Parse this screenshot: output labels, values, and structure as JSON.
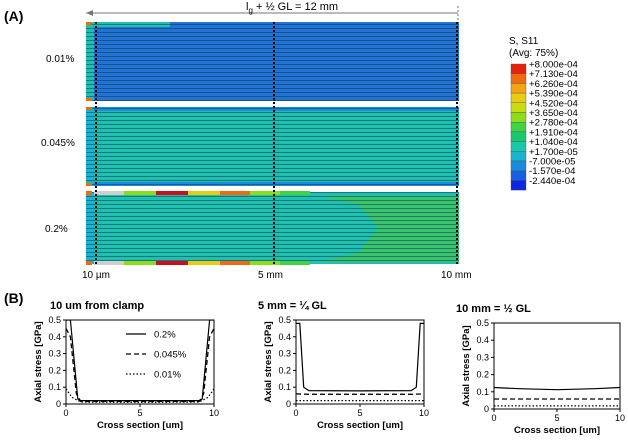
{
  "panel_a": {
    "label": "(A)",
    "length_label": "l",
    "length_sub": "g",
    "length_rest": " + ½ GL = 12 mm",
    "strain_labels": [
      "0.01%",
      "0.045%",
      "0.2%"
    ],
    "position_labels": [
      "10 µm",
      "5 mm",
      "10 mm"
    ],
    "legend": {
      "title_1": "S, S11",
      "title_2": "(Avg: 75%)",
      "values": [
        "+8.000e-04",
        "+7.130e-04",
        "+6.260e-04",
        "+5.390e-04",
        "+4.520e-04",
        "+3.650e-04",
        "+2.780e-04",
        "+1.910e-04",
        "+1.040e-04",
        "+1.700e-05",
        "-7.000e-05",
        "-1.570e-04",
        "-2.440e-04"
      ],
      "colors": [
        "#e8200c",
        "#f06a10",
        "#f4a410",
        "#e8cc10",
        "#c8dc10",
        "#8cdc18",
        "#40d440",
        "#18c870",
        "#1ac8a8",
        "#18b4d0",
        "#1a8cde",
        "#1460e0",
        "#0a28e0"
      ]
    },
    "contour_colors": {
      "blue": "#2274d2",
      "teal": "#1fc0ae",
      "green": "#38c46a",
      "line": "#0e2f55"
    }
  },
  "panel_b": {
    "label": "(B)",
    "chart_data": [
      {
        "type": "line",
        "title": "10 um from clamp",
        "xlabel": "Cross section [um]",
        "ylabel": "Axial stress [GPa]",
        "xlim": [
          0,
          10
        ],
        "ylim": [
          0,
          0.5
        ],
        "xticks": [
          0,
          5,
          10
        ],
        "yticks": [
          0,
          0.1,
          0.2,
          0.3,
          0.4,
          0.5
        ],
        "legend_position": "top-right",
        "series": [
          {
            "name": "0.2%",
            "style": "solid",
            "x": [
              0,
              0.3,
              0.8,
              1,
              5,
              9,
              9.2,
              9.7,
              10
            ],
            "y": [
              0.5,
              0.5,
              0.03,
              0.02,
              0.02,
              0.02,
              0.03,
              0.5,
              0.5
            ]
          },
          {
            "name": "0.045%",
            "style": "dashed",
            "x": [
              0,
              0.3,
              0.7,
              1,
              5,
              9,
              9.3,
              9.7,
              10
            ],
            "y": [
              0.45,
              0.4,
              0.06,
              0.015,
              0.015,
              0.015,
              0.06,
              0.4,
              0.45
            ]
          },
          {
            "name": "0.01%",
            "style": "dotted",
            "x": [
              0,
              0.4,
              1,
              5,
              9,
              9.6,
              10
            ],
            "y": [
              0.09,
              0.04,
              0.012,
              0.01,
              0.012,
              0.04,
              0.09
            ]
          }
        ]
      },
      {
        "type": "line",
        "title": "5 mm = ¼ GL",
        "xlabel": "Cross section [um]",
        "ylabel": "Axial stress [GPa]",
        "xlim": [
          0,
          10
        ],
        "ylim": [
          0,
          0.5
        ],
        "xticks": [
          0,
          5,
          10
        ],
        "yticks": [
          0,
          0.1,
          0.2,
          0.3,
          0.4,
          0.5
        ],
        "series": [
          {
            "style": "solid",
            "x": [
              0,
              0.3,
              0.6,
              1,
              5,
              9,
              9.4,
              9.7,
              10
            ],
            "y": [
              0.48,
              0.48,
              0.1,
              0.08,
              0.078,
              0.08,
              0.1,
              0.48,
              0.48
            ]
          },
          {
            "style": "dashed",
            "x": [
              0,
              1,
              5,
              9,
              10
            ],
            "y": [
              0.06,
              0.058,
              0.058,
              0.058,
              0.06
            ]
          },
          {
            "style": "dotted",
            "x": [
              0,
              10
            ],
            "y": [
              0.02,
              0.02
            ]
          }
        ]
      },
      {
        "type": "line",
        "title": "10 mm = ½ GL",
        "xlabel": "Cross section [um]",
        "ylabel": "Axial stress [GPa]",
        "xlim": [
          0,
          10
        ],
        "ylim": [
          0,
          0.5
        ],
        "xticks": [
          0,
          5,
          10
        ],
        "yticks": [
          0,
          0.1,
          0.2,
          0.3,
          0.4,
          0.5
        ],
        "series": [
          {
            "style": "solid",
            "x": [
              0,
              2,
              5,
              8,
              10
            ],
            "y": [
              0.125,
              0.118,
              0.112,
              0.118,
              0.125
            ]
          },
          {
            "style": "dashed",
            "x": [
              0,
              10
            ],
            "y": [
              0.058,
              0.058
            ]
          },
          {
            "style": "dotted",
            "x": [
              0,
              10
            ],
            "y": [
              0.018,
              0.018
            ]
          }
        ]
      }
    ]
  }
}
